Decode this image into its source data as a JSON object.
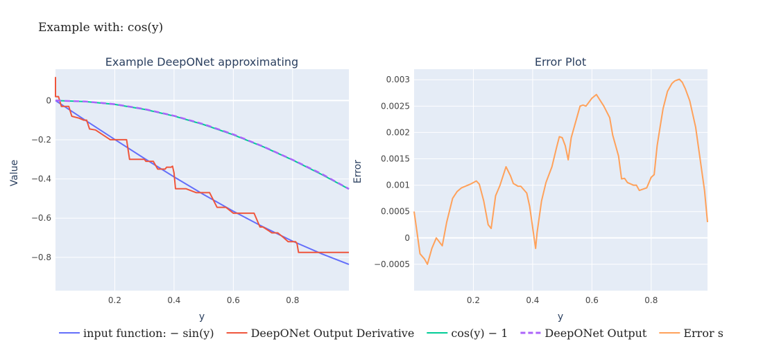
{
  "figure_title": "Example with: cos(y)",
  "chart_data": [
    {
      "type": "line",
      "title": "Example DeepONet approximating",
      "xlabel": "y",
      "ylabel": "Value",
      "xlim": [
        0.0,
        0.99
      ],
      "ylim": [
        -0.97,
        0.16
      ],
      "x_ticks": [
        0.2,
        0.4,
        0.6,
        0.8
      ],
      "x_tick_labels": [
        "0.2",
        "0.4",
        "0.6",
        "0.8"
      ],
      "y_ticks": [
        0,
        -0.2,
        -0.4,
        -0.6,
        -0.8
      ],
      "y_tick_labels": [
        "0",
        "−0.2",
        "−0.4",
        "−0.6",
        "−0.8"
      ],
      "grid": true,
      "series": [
        {
          "name": "input function: −sin(y)",
          "color": "#636efa",
          "dash": "solid",
          "x": [
            0,
            0.1,
            0.2,
            0.3,
            0.4,
            0.5,
            0.6,
            0.7,
            0.8,
            0.9,
            0.99
          ],
          "y": [
            0,
            -0.0998,
            -0.1987,
            -0.2955,
            -0.3894,
            -0.4794,
            -0.5646,
            -0.6442,
            -0.7174,
            -0.7833,
            -0.836
          ]
        },
        {
          "name": "DeepONet Output Derivative",
          "color": "#ef553b",
          "dash": "solid",
          "x": [
            0.0,
            0.0,
            0.002,
            0.01,
            0.02,
            0.025,
            0.04,
            0.045,
            0.055,
            0.08,
            0.095,
            0.105,
            0.115,
            0.135,
            0.185,
            0.21,
            0.24,
            0.25,
            0.255,
            0.3,
            0.3,
            0.305,
            0.33,
            0.345,
            0.36,
            0.37,
            0.375,
            0.39,
            0.395,
            0.4,
            0.405,
            0.44,
            0.475,
            0.5,
            0.52,
            0.53,
            0.545,
            0.555,
            0.575,
            0.6,
            0.62,
            0.67,
            0.69,
            0.7,
            0.72,
            0.73,
            0.75,
            0.77,
            0.785,
            0.8,
            0.81,
            0.815,
            0.82,
            0.84,
            0.86,
            0.99
          ],
          "y": [
            0.12,
            0.02,
            0.02,
            0.02,
            -0.03,
            -0.03,
            -0.03,
            -0.03,
            -0.08,
            -0.09,
            -0.1,
            -0.1,
            -0.145,
            -0.15,
            -0.2,
            -0.2,
            -0.2,
            -0.3,
            -0.3,
            -0.3,
            -0.3,
            -0.31,
            -0.31,
            -0.35,
            -0.35,
            -0.35,
            -0.34,
            -0.34,
            -0.335,
            -0.37,
            -0.45,
            -0.45,
            -0.47,
            -0.47,
            -0.47,
            -0.5,
            -0.545,
            -0.545,
            -0.545,
            -0.575,
            -0.575,
            -0.575,
            -0.645,
            -0.645,
            -0.665,
            -0.675,
            -0.675,
            -0.7,
            -0.72,
            -0.72,
            -0.72,
            -0.73,
            -0.775,
            -0.775,
            -0.775,
            -0.775
          ]
        },
        {
          "name": "cos(y) − 1",
          "color": "#00cc96",
          "dash": "solid",
          "x": [
            0,
            0.1,
            0.2,
            0.3,
            0.4,
            0.5,
            0.6,
            0.7,
            0.8,
            0.9,
            0.99
          ],
          "y": [
            0,
            -0.005,
            -0.0199,
            -0.0447,
            -0.0789,
            -0.1224,
            -0.1747,
            -0.2352,
            -0.3033,
            -0.3784,
            -0.4515
          ]
        },
        {
          "name": "DeepONet Output",
          "color": "#ab63fa",
          "dash": "dash",
          "x": [
            0,
            0.1,
            0.2,
            0.3,
            0.4,
            0.5,
            0.6,
            0.7,
            0.8,
            0.9,
            0.99
          ],
          "y": [
            0,
            -0.0045,
            -0.0186,
            -0.0433,
            -0.0778,
            -0.1208,
            -0.1727,
            -0.234,
            -0.3022,
            -0.3757,
            -0.451
          ]
        }
      ]
    },
    {
      "type": "line",
      "title": "Error Plot",
      "xlabel": "y",
      "ylabel": "Error",
      "xlim": [
        0.0,
        0.99
      ],
      "ylim": [
        -0.001,
        0.0032
      ],
      "x_ticks": [
        0.2,
        0.4,
        0.6,
        0.8
      ],
      "x_tick_labels": [
        "0.2",
        "0.4",
        "0.6",
        "0.8"
      ],
      "y_ticks": [
        -0.0005,
        0,
        0.0005,
        0.001,
        0.0015,
        0.002,
        0.0025,
        0.003
      ],
      "y_tick_labels": [
        "−0.0005",
        "0",
        "0.0005",
        "0.001",
        "0.0015",
        "0.002",
        "0.0025",
        "0.003"
      ],
      "grid": true,
      "series": [
        {
          "name": "Error s",
          "color": "#ffa15a",
          "dash": "solid",
          "x": [
            0.0,
            0.01,
            0.02,
            0.035,
            0.045,
            0.06,
            0.075,
            0.095,
            0.11,
            0.13,
            0.145,
            0.16,
            0.19,
            0.21,
            0.22,
            0.235,
            0.25,
            0.26,
            0.275,
            0.29,
            0.31,
            0.325,
            0.335,
            0.345,
            0.35,
            0.36,
            0.38,
            0.39,
            0.4,
            0.405,
            0.41,
            0.415,
            0.43,
            0.445,
            0.465,
            0.48,
            0.49,
            0.5,
            0.51,
            0.52,
            0.53,
            0.545,
            0.56,
            0.57,
            0.58,
            0.6,
            0.615,
            0.64,
            0.66,
            0.67,
            0.69,
            0.7,
            0.71,
            0.72,
            0.74,
            0.75,
            0.76,
            0.785,
            0.8,
            0.81,
            0.82,
            0.83,
            0.84,
            0.855,
            0.87,
            0.88,
            0.895,
            0.905,
            0.91,
            0.915,
            0.93,
            0.95,
            0.965,
            0.98,
            0.99
          ],
          "y": [
            0.0005,
            0.0001,
            -0.0003,
            -0.0004,
            -0.0005,
            -0.0002,
            0.0,
            -0.00015,
            0.0003,
            0.00075,
            0.00088,
            0.00095,
            0.00102,
            0.00108,
            0.00102,
            0.0007,
            0.00025,
            0.00018,
            0.0008,
            0.001,
            0.00135,
            0.00118,
            0.00103,
            0.001,
            0.00098,
            0.00098,
            0.00085,
            0.0006,
            0.0002,
            0.0,
            -0.0002,
            0.0001,
            0.0007,
            0.00105,
            0.00135,
            0.0017,
            0.00192,
            0.0019,
            0.00175,
            0.00148,
            0.0019,
            0.0022,
            0.0025,
            0.00252,
            0.0025,
            0.00265,
            0.00272,
            0.0025,
            0.00228,
            0.00195,
            0.00155,
            0.00112,
            0.00113,
            0.00105,
            0.001,
            0.001,
            0.0009,
            0.00095,
            0.00115,
            0.0012,
            0.00175,
            0.0021,
            0.00245,
            0.00278,
            0.00293,
            0.00298,
            0.00301,
            0.00295,
            0.00289,
            0.00283,
            0.0026,
            0.0021,
            0.0015,
            0.0009,
            0.0003
          ]
        }
      ]
    }
  ],
  "legend": [
    {
      "label": "input function: − sin(y)",
      "color": "#636efa",
      "dash": "solid"
    },
    {
      "label": "DeepONet Output Derivative",
      "color": "#ef553b",
      "dash": "solid"
    },
    {
      "label": "cos(y) − 1",
      "color": "#00cc96",
      "dash": "solid"
    },
    {
      "label": "DeepONet Output",
      "color": "#ab63fa",
      "dash": "dash"
    },
    {
      "label": "Error s",
      "color": "#ffa15a",
      "dash": "solid"
    }
  ]
}
